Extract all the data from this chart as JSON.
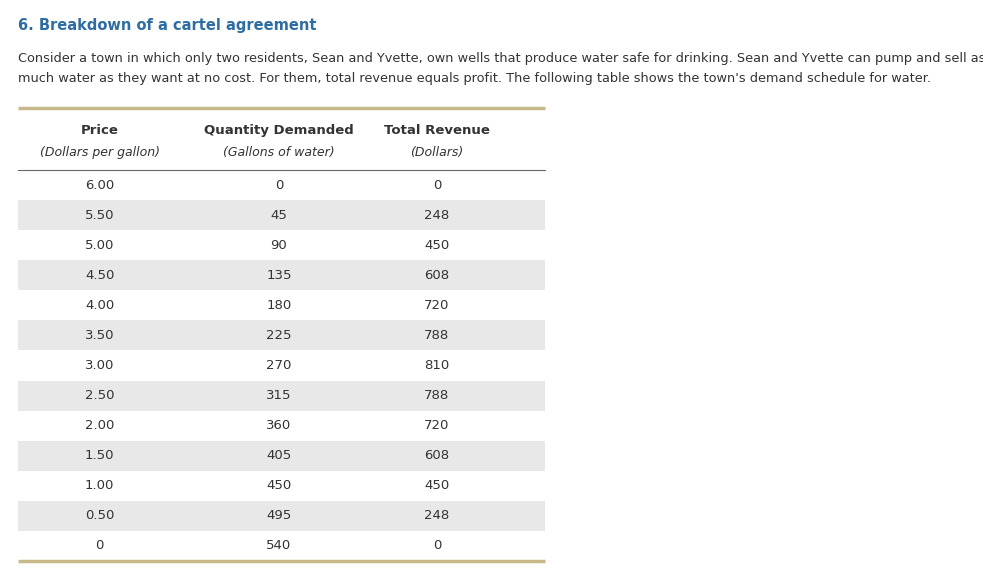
{
  "title": "6. Breakdown of a cartel agreement",
  "para_line1": "Consider a town in which only two residents, Sean and Yvette, own wells that produce water safe for drinking. Sean and Yvette can pump and sell as",
  "para_line2": "much water as they want at no cost. For them, total revenue equals profit. The following table shows the town's demand schedule for water.",
  "col_headers": [
    "Price",
    "Quantity Demanded",
    "Total Revenue"
  ],
  "col_subheaders": [
    "(Dollars per gallon)",
    "(Gallons of water)",
    "(Dollars)"
  ],
  "rows": [
    [
      "6.00",
      "0",
      "0"
    ],
    [
      "5.50",
      "45",
      "248"
    ],
    [
      "5.00",
      "90",
      "450"
    ],
    [
      "4.50",
      "135",
      "608"
    ],
    [
      "4.00",
      "180",
      "720"
    ],
    [
      "3.50",
      "225",
      "788"
    ],
    [
      "3.00",
      "270",
      "810"
    ],
    [
      "2.50",
      "315",
      "788"
    ],
    [
      "2.00",
      "360",
      "720"
    ],
    [
      "1.50",
      "405",
      "608"
    ],
    [
      "1.00",
      "450",
      "450"
    ],
    [
      "0.50",
      "495",
      "248"
    ],
    [
      "0",
      "540",
      "0"
    ]
  ],
  "title_color": "#2e6da4",
  "text_color": "#333333",
  "header_color": "#333333",
  "stripe_color": "#e8e8e8",
  "border_color": "#c8b98a",
  "separator_color": "#666666",
  "background_color": "#ffffff",
  "fig_width": 9.83,
  "fig_height": 5.79,
  "dpi": 100
}
